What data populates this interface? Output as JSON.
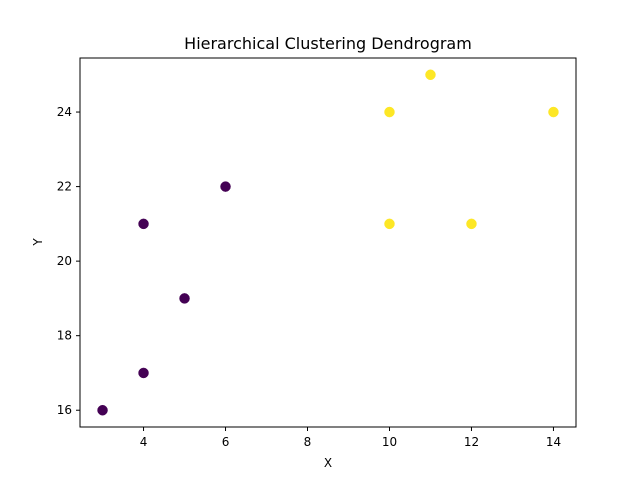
{
  "chart_data": {
    "type": "scatter",
    "title": "Hierarchical Clustering Dendrogram",
    "xlabel": "X",
    "ylabel": "Y",
    "xlim": [
      2.45,
      14.55
    ],
    "ylim": [
      15.55,
      25.45
    ],
    "x_ticks": [
      4,
      6,
      8,
      10,
      12,
      14
    ],
    "y_ticks": [
      16,
      18,
      20,
      22,
      24
    ],
    "grid": false,
    "legend": "none",
    "series": [
      {
        "color": "#440154",
        "points": [
          {
            "x": 3,
            "y": 16
          },
          {
            "x": 4,
            "y": 17
          },
          {
            "x": 4,
            "y": 21
          },
          {
            "x": 5,
            "y": 19
          },
          {
            "x": 6,
            "y": 22
          }
        ]
      },
      {
        "color": "#fde725",
        "points": [
          {
            "x": 10,
            "y": 24
          },
          {
            "x": 10,
            "y": 21
          },
          {
            "x": 11,
            "y": 25
          },
          {
            "x": 12,
            "y": 21
          },
          {
            "x": 14,
            "y": 24
          }
        ]
      }
    ]
  }
}
